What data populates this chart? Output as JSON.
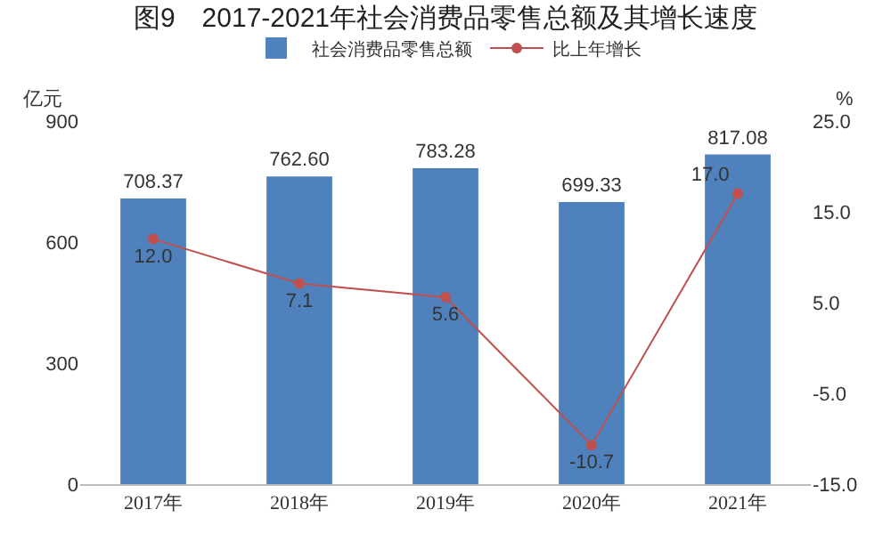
{
  "chart_data": {
    "type": "bar",
    "title": "图9　2017-2021年社会消费品零售总额及其增长速度",
    "ylabel": "亿元",
    "y2label": "%",
    "categories": [
      "2017年",
      "2018年",
      "2019年",
      "2020年",
      "2021年"
    ],
    "series": [
      {
        "name": "社会消费品零售总额",
        "color": "#4f81bd",
        "values": [
          708.37,
          762.6,
          783.28,
          699.33,
          817.08
        ],
        "value_labels": [
          "708.37",
          "762.60",
          "783.28",
          "699.33",
          "817.08"
        ]
      },
      {
        "name": "比上年增长",
        "type": "line",
        "axis": "y2",
        "color": "#c0504d",
        "marker": "circle",
        "values": [
          12.0,
          7.1,
          5.6,
          -10.7,
          17.0
        ],
        "value_labels": [
          "12.0",
          "7.1",
          "5.6",
          "-10.7",
          "17.0"
        ]
      }
    ],
    "ylim": [
      0,
      900
    ],
    "yticks": [
      0,
      300,
      600,
      900
    ],
    "y2lim": [
      -15,
      25
    ],
    "y2ticks": [
      {
        "value": -15,
        "label": "-15.0"
      },
      {
        "value": -5,
        "label": "-5.0"
      },
      {
        "value": 5,
        "label": "5.0"
      },
      {
        "value": 15,
        "label": "15.0"
      },
      {
        "value": 25,
        "label": "25.0"
      }
    ],
    "grid": false,
    "legend": "top"
  }
}
